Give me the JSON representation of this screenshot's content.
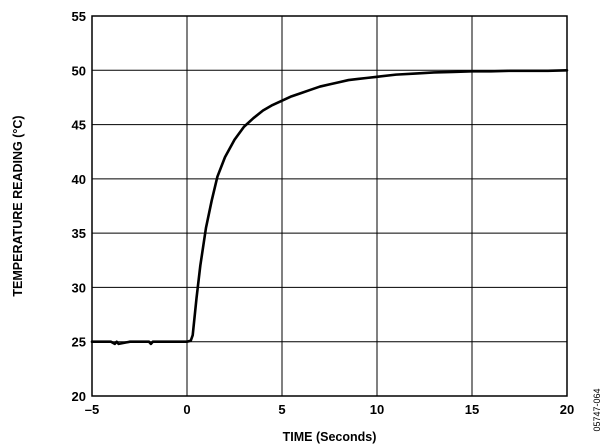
{
  "chart_data": {
    "type": "line",
    "title": "",
    "xlabel": "TIME (Seconds)",
    "ylabel": "TEMPERATURE READING (°C)",
    "xlim": [
      -5,
      20
    ],
    "ylim": [
      20,
      55
    ],
    "xticks": [
      -5,
      0,
      5,
      10,
      15,
      20
    ],
    "xtick_labels": [
      "–5",
      "0",
      "5",
      "10",
      "15",
      "20"
    ],
    "yticks": [
      20,
      25,
      30,
      35,
      40,
      45,
      50,
      55
    ],
    "ytick_labels": [
      "20",
      "25",
      "30",
      "35",
      "40",
      "45",
      "50",
      "55"
    ],
    "grid": true,
    "series": [
      {
        "x": [
          -5,
          -4,
          -3.8,
          -3.7,
          -3.6,
          -3,
          -2,
          -1.9,
          -1.8,
          -1,
          0,
          0.2,
          0.3,
          0.5,
          0.7,
          1.0,
          1.3,
          1.6,
          2.0,
          2.5,
          3.0,
          3.5,
          4.0,
          4.5,
          5.0,
          5.5,
          6.0,
          6.5,
          7.0,
          7.5,
          8.0,
          8.5,
          9.0,
          9.5,
          10.0,
          11.0,
          12.0,
          13.0,
          14.0,
          15.0,
          16.0,
          17.0,
          18.0,
          19.0,
          20.0
        ],
        "y": [
          25.0,
          25.0,
          24.8,
          25.0,
          24.8,
          25.0,
          25.0,
          24.8,
          25.0,
          25.0,
          25.0,
          25.1,
          25.6,
          29.0,
          32.0,
          35.5,
          38.0,
          40.2,
          42.0,
          43.6,
          44.8,
          45.6,
          46.3,
          46.8,
          47.2,
          47.6,
          47.9,
          48.2,
          48.5,
          48.7,
          48.9,
          49.1,
          49.2,
          49.3,
          49.4,
          49.6,
          49.7,
          49.8,
          49.85,
          49.9,
          49.9,
          49.95,
          49.95,
          49.95,
          50.0
        ]
      }
    ]
  },
  "figure_id": "05747-064"
}
